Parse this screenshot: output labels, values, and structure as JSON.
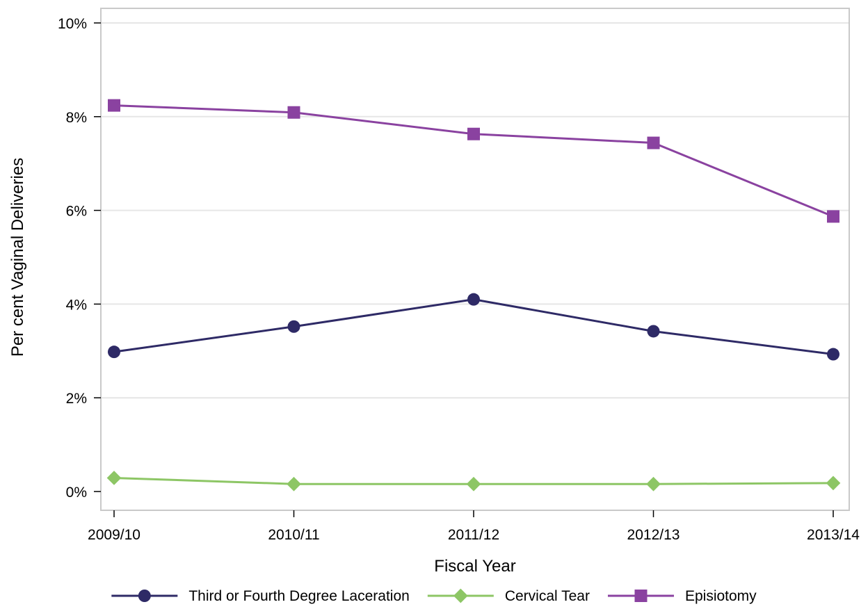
{
  "chart_data": {
    "type": "line",
    "title": "",
    "xlabel": "Fiscal Year",
    "ylabel": "Per cent Vaginal Deliveries",
    "categories": [
      "2009/10",
      "2010/11",
      "2011/12",
      "2012/13",
      "2013/14"
    ],
    "ylim": [
      0,
      10
    ],
    "yticks": [
      0,
      2,
      4,
      6,
      8,
      10
    ],
    "ytick_labels": [
      "0%",
      "2%",
      "4%",
      "6%",
      "8%",
      "10%"
    ],
    "grid": "horizontal",
    "legend_position": "bottom",
    "series": [
      {
        "name": "Third or Fourth Degree Laceration",
        "values": [
          2.98,
          3.52,
          4.1,
          3.42,
          2.93
        ],
        "color": "#2e2a66",
        "marker": "circle"
      },
      {
        "name": "Cervical Tear",
        "values": [
          0.29,
          0.16,
          0.16,
          0.16,
          0.18
        ],
        "color": "#8dc665",
        "marker": "diamond"
      },
      {
        "name": "Episiotomy",
        "values": [
          8.24,
          8.09,
          7.63,
          7.44,
          5.87
        ],
        "color": "#8a42a0",
        "marker": "square"
      }
    ]
  }
}
